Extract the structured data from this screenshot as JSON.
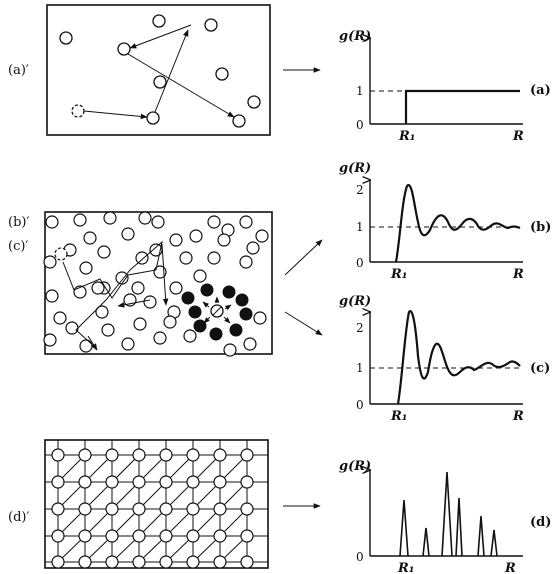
{
  "panels": [
    {
      "id": "a",
      "left_label": "(a)′",
      "right_label": "(a)",
      "ylabel": "g(R)",
      "xlabel": "R",
      "r1_label": "R₁",
      "yticks": [
        "1",
        "0"
      ]
    },
    {
      "id": "b",
      "left_label": "(b)′",
      "right_label": "(b)",
      "ylabel": "g(R)",
      "xlabel": "R",
      "r1_label": "R₁",
      "yticks": [
        "2",
        "1",
        "0"
      ]
    },
    {
      "id": "c",
      "left_label": "(c)′",
      "right_label": "(c)",
      "ylabel": "g(R)",
      "xlabel": "R",
      "r1_label": "R₁",
      "yticks": [
        "2",
        "1",
        "0"
      ]
    },
    {
      "id": "d",
      "left_label": "(d)′",
      "right_label": "(d)",
      "ylabel": "g(R)",
      "xlabel": "R",
      "r1_label": "R₁",
      "yticks": [
        "0"
      ]
    }
  ],
  "colors": {
    "ink": "#111111",
    "paper": "#ffffff"
  }
}
